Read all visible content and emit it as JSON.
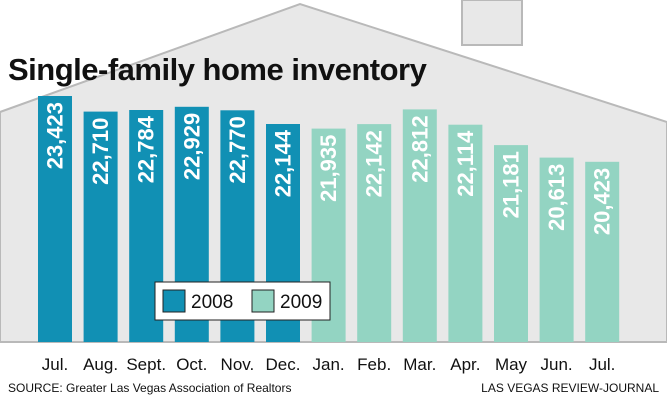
{
  "chart_data": {
    "type": "bar",
    "title": "Single-family home inventory",
    "categories": [
      "Jul.",
      "Aug.",
      "Sept.",
      "Oct.",
      "Nov.",
      "Dec.",
      "Jan.",
      "Feb.",
      "Mar.",
      "Apr.",
      "May",
      "Jun.",
      "Jul."
    ],
    "values": [
      23423,
      22710,
      22784,
      22929,
      22770,
      22144,
      21935,
      22142,
      22812,
      22114,
      21181,
      20613,
      20423
    ],
    "data_labels": [
      "23,423",
      "22,710",
      "22,784",
      "22,929",
      "22,770",
      "22,144",
      "21,935",
      "22,142",
      "22,812",
      "22,114",
      "21,181",
      "20,613",
      "20,423"
    ],
    "groups": [
      "2008",
      "2008",
      "2008",
      "2008",
      "2008",
      "2008",
      "2009",
      "2009",
      "2009",
      "2009",
      "2009",
      "2009",
      "2009"
    ],
    "legend": [
      {
        "name": "2008",
        "color": "#1190b4"
      },
      {
        "name": "2009",
        "color": "#93d4c2"
      }
    ],
    "legend_position": "bottom-left",
    "grid": false,
    "xlabel": "",
    "ylabel": ""
  },
  "source": "SOURCE: Greater Las Vegas Association of Realtors",
  "credit": "LAS VEGAS REVIEW-JOURNAL",
  "colors": {
    "house_fill": "#e8e8e8",
    "house_stroke": "#b9b9b9",
    "bar_2008": "#1190b4",
    "bar_2009": "#93d4c2"
  }
}
